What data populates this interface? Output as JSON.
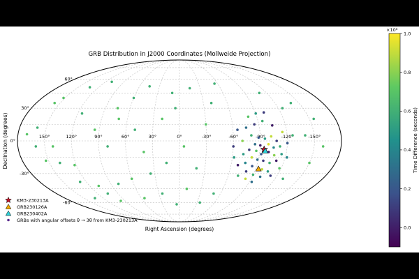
{
  "chart_data": {
    "type": "scatter",
    "projection": "mollweide",
    "title": "GRB Distribution in J2000 Coordinates (Mollweide Projection)",
    "xlabel": "Right Ascension (degrees)",
    "ylabel": "Declination (degrees)",
    "x_direction": "decreasing-to-right",
    "xlim": [
      180,
      -180
    ],
    "ylim": [
      -90,
      90
    ],
    "x_tick_labels": [
      {
        "value": 150,
        "label": "150°"
      },
      {
        "value": 120,
        "label": "120°"
      },
      {
        "value": 90,
        "label": "90°"
      },
      {
        "value": 60,
        "label": "60°"
      },
      {
        "value": 30,
        "label": "30°"
      },
      {
        "value": 0,
        "label": "0°"
      },
      {
        "value": -30,
        "label": "-30°"
      },
      {
        "value": -60,
        "label": "-60°"
      },
      {
        "value": -90,
        "label": "-90°"
      },
      {
        "value": -120,
        "label": "-120°"
      },
      {
        "value": -150,
        "label": "-150°"
      }
    ],
    "y_tick_labels": [
      {
        "value": 60,
        "label": "60°"
      },
      {
        "value": 30,
        "label": "30°"
      },
      {
        "value": 0,
        "label": "0°"
      },
      {
        "value": -30,
        "label": "-30°"
      },
      {
        "value": -60,
        "label": "-60°"
      }
    ],
    "grid": true,
    "colorbar": {
      "label": "Time Difference (seconds)",
      "scale_label": "×10⁸",
      "colormap": "viridis",
      "range": [
        -0.1,
        1.0
      ],
      "ticks": [
        {
          "value": 0.0,
          "label": "0.0"
        },
        {
          "value": 0.2,
          "label": "0.2"
        },
        {
          "value": 0.4,
          "label": "0.4"
        },
        {
          "value": 0.6,
          "label": "0.6"
        },
        {
          "value": 0.8,
          "label": "0.8"
        },
        {
          "value": 1.0,
          "label": "1.0"
        }
      ]
    },
    "legend_position": "lower-left",
    "legend": [
      {
        "label": "KM3-230213A",
        "marker": "star",
        "color": "#c0152a"
      },
      {
        "label": "GRB230126A",
        "marker": "triangle",
        "color": "#f2a900"
      },
      {
        "label": "GRB230402A",
        "marker": "triangle",
        "color": "#2fd1d8"
      },
      {
        "label": "GRBs with angular offsets θ → 3θ from KM3-230213A",
        "marker": "circle",
        "color": "#5b2d8e"
      }
    ],
    "highlights": [
      {
        "name": "KM3-230213A",
        "ra": -94.6,
        "dec": -7.8,
        "marker": "star",
        "color": "#c0152a"
      },
      {
        "name": "GRB230126A",
        "ra": -93.5,
        "dec": -25.5,
        "marker": "triangle",
        "color": "#f2a900"
      },
      {
        "name": "GRB230402A",
        "ra": -96.0,
        "dec": -9.0,
        "marker": "triangle",
        "color": "#2fd1d8"
      }
    ],
    "points": [
      {
        "ra": 110,
        "dec": 57,
        "c": 0.6
      },
      {
        "ra": 133,
        "dec": 51,
        "c": 0.6
      },
      {
        "ra": 152,
        "dec": 40,
        "c": 0.7
      },
      {
        "ra": 157,
        "dec": 35,
        "c": 0.7
      },
      {
        "ra": 160,
        "dec": 12,
        "c": 0.6
      },
      {
        "ra": 170,
        "dec": 6,
        "c": 0.7
      },
      {
        "ra": 160,
        "dec": -5,
        "c": 0.6
      },
      {
        "ra": 141,
        "dec": -5,
        "c": 0.7
      },
      {
        "ra": 153,
        "dec": -18,
        "c": 0.7
      },
      {
        "ra": 138,
        "dec": -20,
        "c": 0.6
      },
      {
        "ra": 122,
        "dec": -22,
        "c": 0.7
      },
      {
        "ra": 128,
        "dec": -38,
        "c": 0.6
      },
      {
        "ra": 108,
        "dec": -42,
        "c": 0.7
      },
      {
        "ra": 133,
        "dec": -55,
        "c": 0.6
      },
      {
        "ra": 105,
        "dec": -50,
        "c": 0.6
      },
      {
        "ra": 97,
        "dec": -58,
        "c": 0.7
      },
      {
        "ra": 115,
        "dec": 25,
        "c": 0.6
      },
      {
        "ra": 95,
        "dec": 10,
        "c": 0.7
      },
      {
        "ra": 80,
        "dec": -5,
        "c": 0.6
      },
      {
        "ra": 70,
        "dec": 20,
        "c": 0.7
      },
      {
        "ra": 60,
        "dec": 40,
        "c": 0.6
      },
      {
        "ra": 45,
        "dec": 52,
        "c": 0.6
      },
      {
        "ra": 75,
        "dec": 30,
        "c": 0.7
      },
      {
        "ra": 50,
        "dec": 10,
        "c": 0.6
      },
      {
        "ra": 40,
        "dec": -10,
        "c": 0.7
      },
      {
        "ra": 35,
        "dec": -30,
        "c": 0.6
      },
      {
        "ra": 60,
        "dec": -35,
        "c": 0.7
      },
      {
        "ra": 80,
        "dec": -40,
        "c": 0.6
      },
      {
        "ra": 55,
        "dec": -55,
        "c": 0.7
      },
      {
        "ra": 25,
        "dec": -50,
        "c": 0.6
      },
      {
        "ra": 20,
        "dec": 20,
        "c": 0.7
      },
      {
        "ra": 10,
        "dec": 45,
        "c": 0.6
      },
      {
        "ra": 5,
        "dec": 30,
        "c": 0.6
      },
      {
        "ra": -15,
        "dec": 50,
        "c": 0.6
      },
      {
        "ra": -5,
        "dec": -5,
        "c": 0.7
      },
      {
        "ra": 15,
        "dec": -20,
        "c": 0.6
      },
      {
        "ra": -20,
        "dec": -25,
        "c": 0.6
      },
      {
        "ra": -10,
        "dec": -45,
        "c": 0.7
      },
      {
        "ra": 5,
        "dec": -62,
        "c": 0.6
      },
      {
        "ra": -30,
        "dec": 15,
        "c": 0.7
      },
      {
        "ra": -35,
        "dec": -60,
        "c": 0.6
      },
      {
        "ra": -50,
        "dec": -50,
        "c": 0.6
      },
      {
        "ra": -40,
        "dec": 35,
        "c": 0.6
      },
      {
        "ra": -55,
        "dec": 55,
        "c": 0.6
      },
      {
        "ra": -140,
        "dec": 5,
        "c": 0.6
      },
      {
        "ra": -155,
        "dec": 20,
        "c": 0.6
      },
      {
        "ra": -150,
        "dec": -20,
        "c": 0.7
      },
      {
        "ra": -130,
        "dec": -35,
        "c": 0.6
      },
      {
        "ra": -125,
        "dec": 30,
        "c": 0.6
      },
      {
        "ra": -160,
        "dec": -5,
        "c": 0.7
      },
      {
        "ra": -110,
        "dec": 45,
        "c": 0.6
      },
      {
        "ra": -140,
        "dec": 35,
        "c": 0.6
      },
      {
        "ra": -80,
        "dec": 5,
        "c": 0.6
      },
      {
        "ra": -88,
        "dec": 3,
        "c": 0.2
      },
      {
        "ra": -95,
        "dec": 2,
        "c": 0.5
      },
      {
        "ra": -102,
        "dec": 4,
        "c": 0.9
      },
      {
        "ra": -108,
        "dec": 0,
        "c": 0.1
      },
      {
        "ra": -84,
        "dec": -3,
        "c": 0.3
      },
      {
        "ra": -90,
        "dec": -4,
        "c": 0.0
      },
      {
        "ra": -99,
        "dec": -3,
        "c": 0.95
      },
      {
        "ra": -105,
        "dec": -6,
        "c": 0.4
      },
      {
        "ra": -112,
        "dec": -5,
        "c": 0.6
      },
      {
        "ra": -78,
        "dec": -8,
        "c": 0.1
      },
      {
        "ra": -86,
        "dec": -9,
        "c": 0.7
      },
      {
        "ra": -92,
        "dec": -12,
        "c": 0.2
      },
      {
        "ra": -100,
        "dec": -10,
        "c": 0.0
      },
      {
        "ra": -107,
        "dec": -13,
        "c": 0.8
      },
      {
        "ra": -115,
        "dec": -12,
        "c": 0.5
      },
      {
        "ra": -82,
        "dec": -15,
        "c": 0.9
      },
      {
        "ra": -89,
        "dec": -17,
        "c": 0.3
      },
      {
        "ra": -96,
        "dec": -18,
        "c": 0.1
      },
      {
        "ra": -104,
        "dec": -20,
        "c": 0.6
      },
      {
        "ra": -111,
        "dec": -18,
        "c": 0.0
      },
      {
        "ra": -76,
        "dec": -20,
        "c": 0.4
      },
      {
        "ra": -85,
        "dec": -23,
        "c": 0.2
      },
      {
        "ra": -98,
        "dec": -26,
        "c": 0.9
      },
      {
        "ra": -106,
        "dec": -28,
        "c": 0.5
      },
      {
        "ra": -80,
        "dec": -28,
        "c": 0.1
      },
      {
        "ra": -90,
        "dec": -31,
        "c": 0.6
      },
      {
        "ra": -100,
        "dec": -33,
        "c": 0.3
      },
      {
        "ra": -72,
        "dec": -12,
        "c": 0.5
      },
      {
        "ra": -70,
        "dec": 0,
        "c": 0.8
      },
      {
        "ra": -75,
        "dec": 12,
        "c": 0.3
      },
      {
        "ra": -85,
        "dec": 15,
        "c": 0.1
      },
      {
        "ra": -95,
        "dec": 18,
        "c": 0.6
      },
      {
        "ra": -105,
        "dec": 14,
        "c": 0.0
      },
      {
        "ra": -115,
        "dec": 8,
        "c": 0.9
      },
      {
        "ra": -120,
        "dec": -2,
        "c": 0.2
      },
      {
        "ra": -122,
        "dec": -15,
        "c": 0.4
      },
      {
        "ra": -118,
        "dec": -25,
        "c": 0.7
      },
      {
        "ra": -112,
        "dec": -32,
        "c": 0.1
      },
      {
        "ra": -68,
        "dec": -22,
        "c": 0.0
      },
      {
        "ra": -72,
        "dec": -32,
        "c": 0.6
      },
      {
        "ra": -90,
        "dec": 25,
        "c": 0.5
      },
      {
        "ra": -100,
        "dec": 26,
        "c": 0.1
      },
      {
        "ra": -80,
        "dec": 22,
        "c": 0.7
      },
      {
        "ra": -65,
        "dec": 10,
        "c": 0.2
      },
      {
        "ra": -93,
        "dec": -38,
        "c": 0.3
      },
      {
        "ra": -83,
        "dec": -35,
        "c": 0.9
      },
      {
        "ra": -126,
        "dec": 5,
        "c": 0.6
      },
      {
        "ra": -60,
        "dec": -5,
        "c": 0.1
      },
      {
        "ra": -62,
        "dec": -15,
        "c": 0.5
      }
    ]
  }
}
